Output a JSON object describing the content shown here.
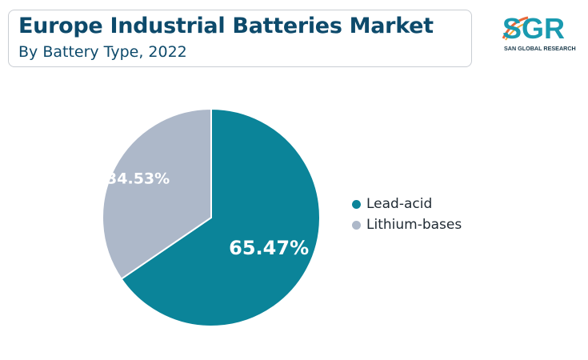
{
  "header": {
    "title": "Europe Industrial Batteries Market",
    "subtitle": "By Battery Type, 2022"
  },
  "logo": {
    "text": "SGR",
    "tagline": "SAN GLOBAL RESEARCH",
    "colors": {
      "primary": "#1a9ab0",
      "accent": "#e8693a"
    }
  },
  "chart_data": {
    "type": "pie",
    "title": "Europe Industrial Batteries Market",
    "subtitle": "By Battery Type, 2022",
    "slices": [
      {
        "label": "Lead-acid",
        "value": 65.47,
        "display": "65.47%",
        "color": "#0b8499"
      },
      {
        "label": "Lithium-bases",
        "value": 34.53,
        "display": "34.53%",
        "color": "#adb8c9"
      }
    ],
    "start": "12 o'clock",
    "direction": "clockwise",
    "legend": "right"
  }
}
